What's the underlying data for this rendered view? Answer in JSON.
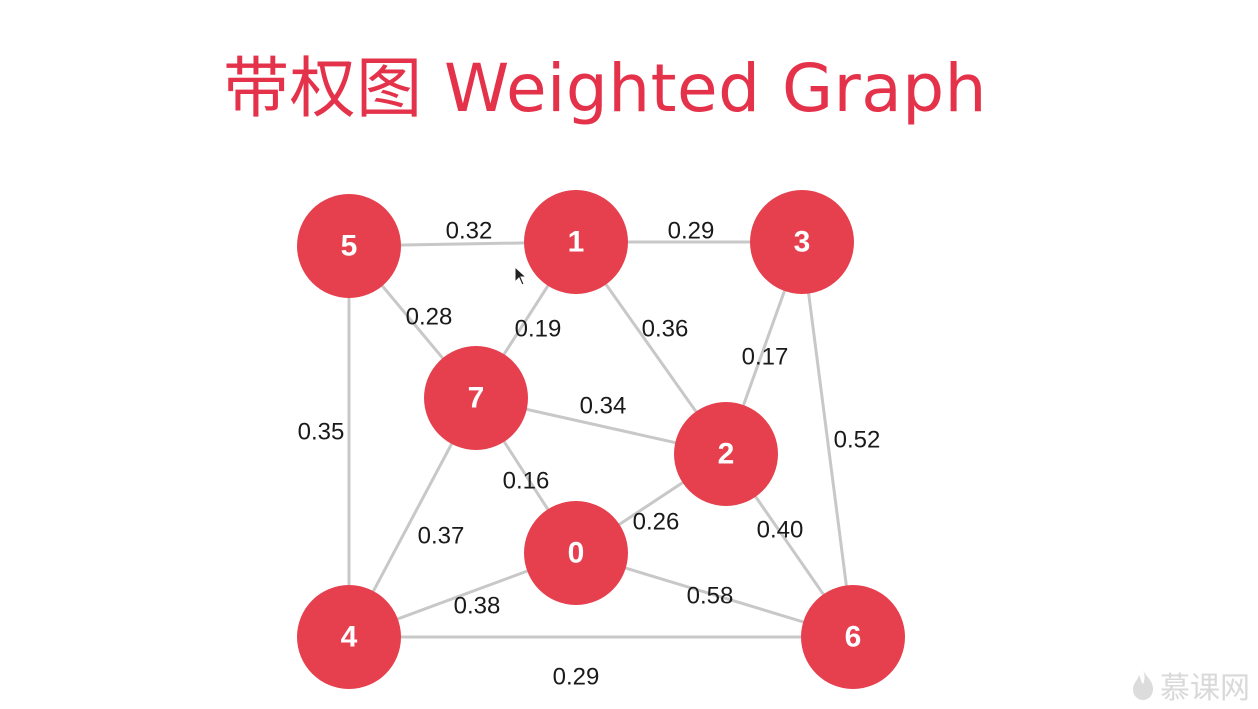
{
  "title": "带权图 Weighted Graph",
  "graph": {
    "nodes": [
      {
        "id": "5",
        "label": "5"
      },
      {
        "id": "1",
        "label": "1"
      },
      {
        "id": "3",
        "label": "3"
      },
      {
        "id": "7",
        "label": "7"
      },
      {
        "id": "2",
        "label": "2"
      },
      {
        "id": "0",
        "label": "0"
      },
      {
        "id": "4",
        "label": "4"
      },
      {
        "id": "6",
        "label": "6"
      }
    ],
    "edges": [
      {
        "from": "5",
        "to": "1",
        "weight": "0.32"
      },
      {
        "from": "1",
        "to": "3",
        "weight": "0.29"
      },
      {
        "from": "5",
        "to": "7",
        "weight": "0.28"
      },
      {
        "from": "1",
        "to": "7",
        "weight": "0.19"
      },
      {
        "from": "1",
        "to": "2",
        "weight": "0.36"
      },
      {
        "from": "3",
        "to": "2",
        "weight": "0.17"
      },
      {
        "from": "5",
        "to": "4",
        "weight": "0.35"
      },
      {
        "from": "7",
        "to": "2",
        "weight": "0.34"
      },
      {
        "from": "3",
        "to": "6",
        "weight": "0.52"
      },
      {
        "from": "7",
        "to": "0",
        "weight": "0.16"
      },
      {
        "from": "0",
        "to": "2",
        "weight": "0.26"
      },
      {
        "from": "7",
        "to": "4",
        "weight": "0.37"
      },
      {
        "from": "2",
        "to": "6",
        "weight": "0.40"
      },
      {
        "from": "4",
        "to": "0",
        "weight": "0.38"
      },
      {
        "from": "0",
        "to": "6",
        "weight": "0.58"
      },
      {
        "from": "4",
        "to": "6",
        "weight": "0.29"
      }
    ]
  },
  "watermark": {
    "text": "慕课网",
    "icon": "flame-logo-icon"
  }
}
